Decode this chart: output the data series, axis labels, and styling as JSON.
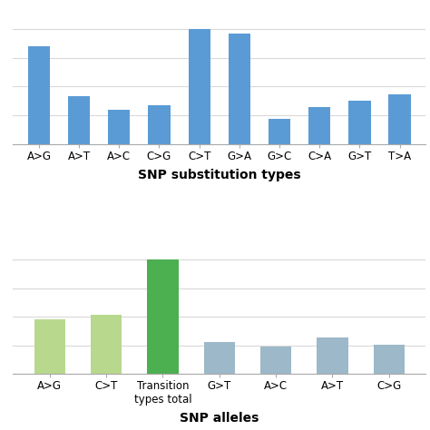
{
  "top_categories": [
    "A>G",
    "A>T",
    "A>C",
    "C>G",
    "C>T",
    "G>A",
    "G>C",
    "C>A",
    "G>T",
    "T>A"
  ],
  "top_values": [
    85,
    42,
    30,
    34,
    100,
    96,
    22,
    32,
    38,
    43
  ],
  "top_color": "#5b9bd5",
  "top_xlabel": "SNP substitution types",
  "bottom_categories": [
    "A>G",
    "C>T",
    "Transition\ntypes total",
    "G>T",
    "A>C",
    "A>T",
    "C>G"
  ],
  "bottom_values": [
    48,
    52,
    100,
    28,
    24,
    32,
    26
  ],
  "bottom_colors": [
    "#b8d98d",
    "#b8d98d",
    "#4caf50",
    "#9db8c8",
    "#9db8c8",
    "#9db8c8",
    "#9db8c8"
  ],
  "bottom_xlabel": "SNP alleles",
  "background_color": "#ffffff",
  "grid_color": "#d9d9d9",
  "label_fontsize": 8.5,
  "xlabel_fontsize": 10
}
